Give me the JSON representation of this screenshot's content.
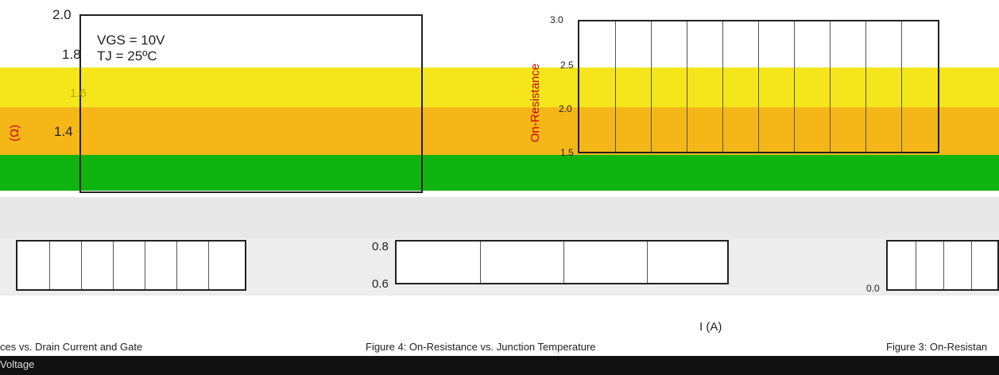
{
  "panels": [
    {
      "ticks": [
        "2.0",
        "1.8",
        "1.6",
        "1.4"
      ],
      "annotations": [
        "VGS = 10V",
        "TJ = 25ºC"
      ],
      "axis_label": "(Ω)"
    },
    {
      "ticks": [
        "3.0",
        "2.5",
        "2.0",
        "1.5"
      ],
      "axis_label": "On-Resistance"
    },
    {
      "ticks": [
        "0.8",
        "0.6"
      ]
    },
    {
      "ticks": [
        "0.0"
      ],
      "axis_label": "I (A)"
    }
  ],
  "captions": [
    "ces vs. Drain Current and Gate",
    "Voltage",
    "Figure 4: On-Resistance vs. Junction Temperature",
    "Figure 3: On-Resistan"
  ]
}
